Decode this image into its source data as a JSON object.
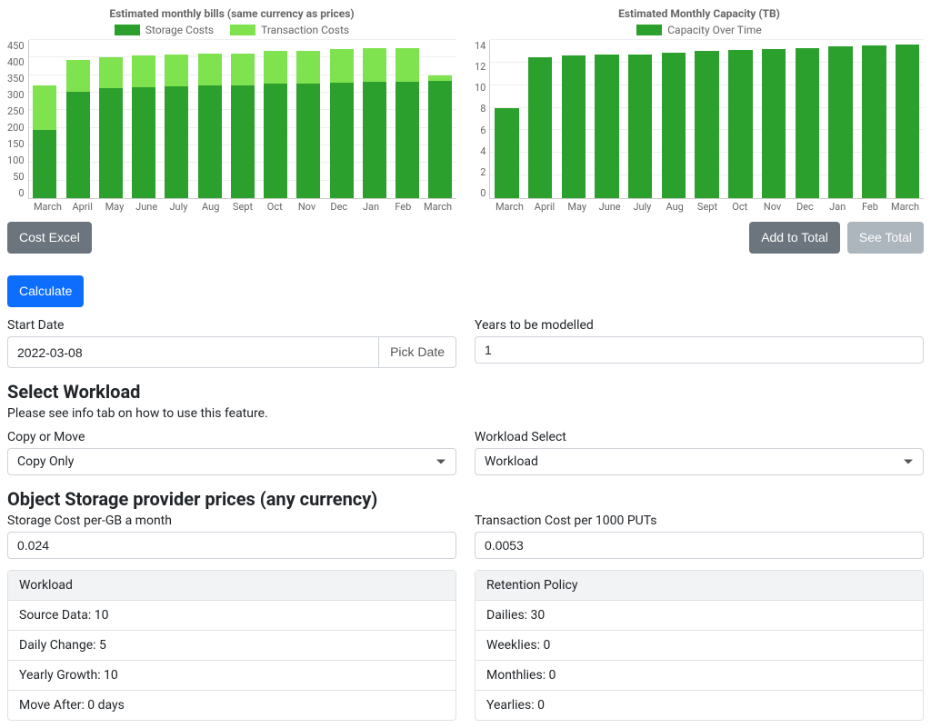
{
  "colors": {
    "storage": "#2ca02c",
    "transaction": "#7fe24f",
    "capacity": "#2ca02c",
    "grid": "#eeeeee",
    "axis": "#cccccc"
  },
  "bills_chart": {
    "title": "Estimated monthly bills (same currency as prices)",
    "legend": [
      {
        "label": "Storage Costs",
        "color": "#2ca02c"
      },
      {
        "label": "Transaction Costs",
        "color": "#7fe24f"
      }
    ],
    "y_max": 450,
    "y_ticks": [
      "450",
      "400",
      "350",
      "300",
      "250",
      "200",
      "150",
      "100",
      "50",
      "0"
    ],
    "categories": [
      "March",
      "April",
      "May",
      "June",
      "July",
      "Aug",
      "Sept",
      "Oct",
      "Nov",
      "Dec",
      "Jan",
      "Feb",
      "March"
    ],
    "storage": [
      195,
      302,
      312,
      315,
      318,
      320,
      322,
      325,
      327,
      328,
      330,
      332,
      334
    ],
    "transaction": [
      125,
      90,
      90,
      90,
      90,
      90,
      90,
      93,
      93,
      96,
      96,
      95,
      16
    ]
  },
  "capacity_chart": {
    "title": "Estimated Monthly Capacity (TB)",
    "legend": [
      {
        "label": "Capacity Over Time",
        "color": "#2ca02c"
      }
    ],
    "y_max": 14,
    "y_ticks": [
      "14",
      "12",
      "10",
      "8",
      "6",
      "4",
      "2",
      "0"
    ],
    "categories": [
      "March",
      "April",
      "May",
      "June",
      "July",
      "Aug",
      "Sept",
      "Oct",
      "Nov",
      "Dec",
      "Jan",
      "Feb",
      "March"
    ],
    "values": [
      8.0,
      12.5,
      12.6,
      12.7,
      12.75,
      12.9,
      13.0,
      13.1,
      13.2,
      13.3,
      13.4,
      13.5,
      13.6
    ]
  },
  "buttons": {
    "cost_excel": "Cost Excel",
    "add_to_total": "Add to Total",
    "see_total": "See Total",
    "calculate": "Calculate",
    "pick_date": "Pick Date"
  },
  "fields": {
    "start_date_label": "Start Date",
    "start_date_value": "2022-03-08",
    "years_label": "Years to be modelled",
    "years_value": "1",
    "workload_heading": "Select Workload",
    "workload_hint": "Please see info tab on how to use this feature.",
    "copy_move_label": "Copy or Move",
    "copy_move_value": "Copy Only",
    "workload_select_label": "Workload Select",
    "workload_select_value": "Workload",
    "pricing_heading": "Object Storage provider prices (any currency)",
    "storage_cost_label": "Storage Cost per-GB a month",
    "storage_cost_value": "0.024",
    "tx_cost_label": "Transaction Cost per 1000 PUTs",
    "tx_cost_value": "0.0053"
  },
  "workload_card": {
    "header": "Workload",
    "rows": [
      "Source Data: 10",
      "Daily Change: 5",
      "Yearly Growth: 10",
      "Move After: 0 days"
    ]
  },
  "retention_card": {
    "header": "Retention Policy",
    "rows": [
      "Dailies: 30",
      "Weeklies: 0",
      "Monthlies: 0",
      "Yearlies: 0"
    ]
  }
}
